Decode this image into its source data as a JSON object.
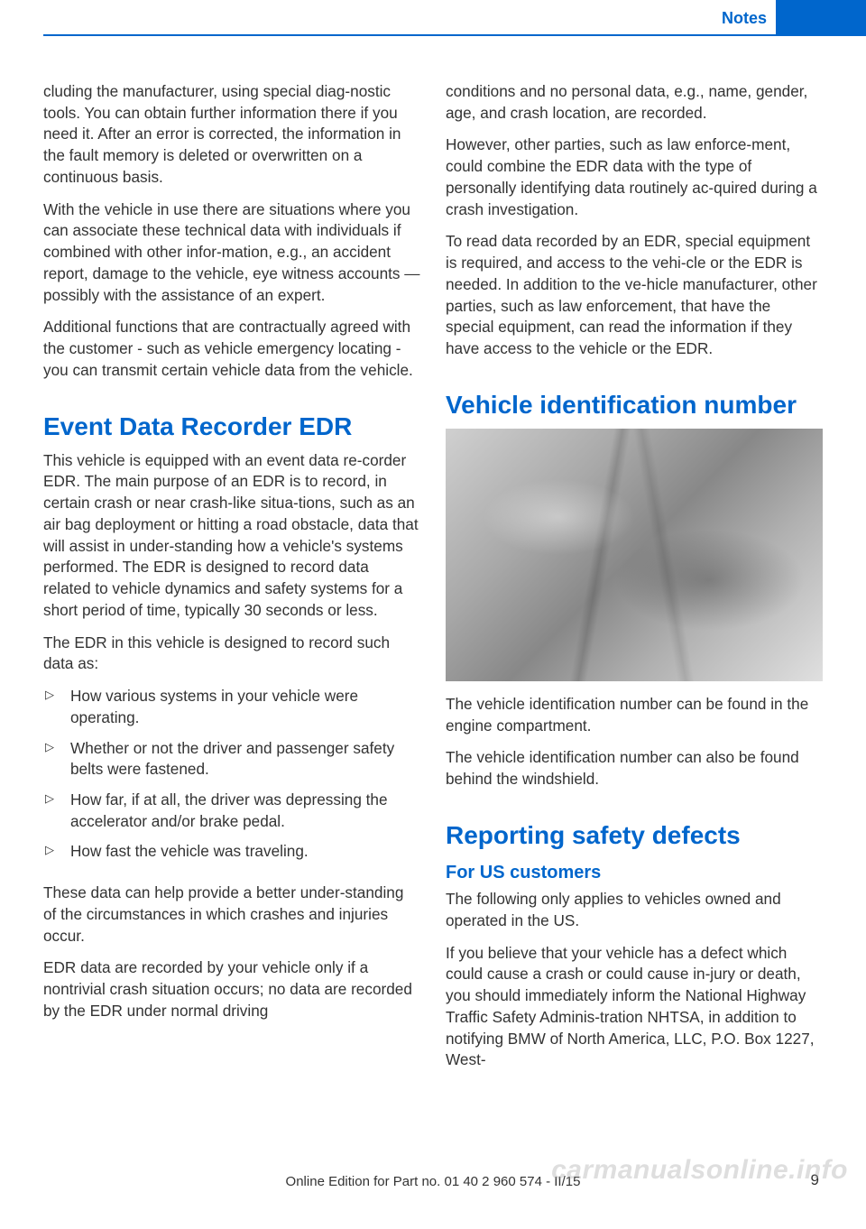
{
  "header": {
    "tab_blank": "",
    "section": "Notes"
  },
  "col1": {
    "p1": "cluding the manufacturer, using special diag‐nostic tools. You can obtain further information there if you need it. After an error is corrected, the information in the fault memory is deleted or overwritten on a continuous basis.",
    "p2": "With the vehicle in use there are situations where you can associate these technical data with individuals if combined with other infor‐mation, e.g., an accident report, damage to the vehicle, eye witness accounts — possibly with the assistance of an expert.",
    "p3": "Additional functions that are contractually agreed with the customer - such as vehicle emergency locating - you can transmit certain vehicle data from the vehicle.",
    "h1_edr": "Event Data Recorder EDR",
    "p4": "This vehicle is equipped with an event data re‐corder EDR. The main purpose of an EDR is to record, in certain crash or near crash-like situa‐tions, such as an air bag deployment or hitting a road obstacle, data that will assist in under‐standing how a vehicle's systems performed. The EDR is designed to record data related to vehicle dynamics and safety systems for a short period of time, typically 30 seconds or less.",
    "p5": "The EDR in this vehicle is designed to record such data as:",
    "li1": "How various systems in your vehicle were operating.",
    "li2": "Whether or not the driver and passenger safety belts were fastened.",
    "li3": "How far, if at all, the driver was depressing the accelerator and/or brake pedal.",
    "li4": "How fast the vehicle was traveling.",
    "p6": "These data can help provide a better under‐standing of the circumstances in which crashes and injuries occur.",
    "p7": "EDR data are recorded by your vehicle only if a nontrivial crash situation occurs; no data are recorded by the EDR under normal driving"
  },
  "col2": {
    "p1": "conditions and no personal data, e.g., name, gender, age, and crash location, are recorded.",
    "p2": "However, other parties, such as law enforce‐ment, could combine the EDR data with the type of personally identifying data routinely ac‐quired during a crash investigation.",
    "p3": "To read data recorded by an EDR, special equipment is required, and access to the vehi‐cle or the EDR is needed. In addition to the ve‐hicle manufacturer, other parties, such as law enforcement, that have the special equipment, can read the information if they have access to the vehicle or the EDR.",
    "h1_vin": "Vehicle identification number",
    "p4": "The vehicle identification number can be found in the engine compartment.",
    "p5": "The vehicle identification number can also be found behind the windshield.",
    "h1_defects": "Reporting safety defects",
    "h2_us": "For US customers",
    "p6": "The following only applies to vehicles owned and operated in the US.",
    "p7": "If you believe that your vehicle has a defect which could cause a crash or could cause in‐jury or death, you should immediately inform the National Highway Traffic Safety Adminis‐tration NHTSA, in addition to notifying BMW of North America, LLC, P.O. Box 1227, West‐"
  },
  "footer": {
    "edition": "Online Edition for Part no. 01 40 2 960 574 - II/15",
    "page": "9",
    "watermark": "carmanualsonline.info"
  },
  "colors": {
    "accent": "#0066cc",
    "text": "#333333",
    "bg": "#ffffff"
  }
}
